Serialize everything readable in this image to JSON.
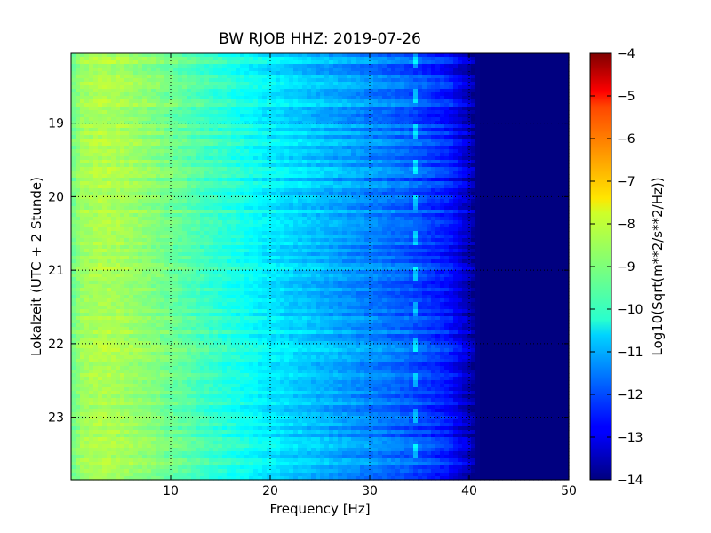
{
  "chart_data": {
    "type": "heatmap",
    "title": "BW RJOB HHZ: 2019-07-26",
    "xlabel": "Frequency [Hz]",
    "ylabel": "Lokalzeit (UTC + 2 Stunde)",
    "colorbar_label": "Log10(Sqrt(m**2/s**2/Hz))",
    "colormap": "jet",
    "xlim": [
      0,
      50
    ],
    "ylim": [
      23.85,
      18.05
    ],
    "clim": [
      -14,
      -4
    ],
    "x_ticks": [
      10,
      20,
      30,
      40,
      50
    ],
    "x_tick_labels": [
      "10",
      "20",
      "30",
      "40",
      "50"
    ],
    "y_ticks": [
      19,
      20,
      21,
      22,
      23
    ],
    "y_tick_labels": [
      "19",
      "20",
      "21",
      "22",
      "23"
    ],
    "colorbar_ticks": [
      -4,
      -5,
      -6,
      -7,
      -8,
      -9,
      -10,
      -11,
      -12,
      -13,
      -14
    ],
    "colorbar_tick_labels": [
      "−4",
      "−5",
      "−6",
      "−7",
      "−8",
      "−9",
      "−10",
      "−11",
      "−12",
      "−13",
      "−14"
    ],
    "grid": true,
    "spectrum_profile": {
      "frequency_hz": [
        0,
        1,
        3,
        5,
        8,
        12,
        16,
        20,
        25,
        30,
        34,
        38,
        40,
        41,
        50
      ],
      "log10_amplitude": [
        -9.2,
        -8.7,
        -8.5,
        -8.6,
        -8.9,
        -9.4,
        -9.9,
        -10.4,
        -10.9,
        -11.4,
        -11.8,
        -12.5,
        -13.4,
        -14,
        -14
      ]
    },
    "narrowband_line_hz": 34.5
  }
}
